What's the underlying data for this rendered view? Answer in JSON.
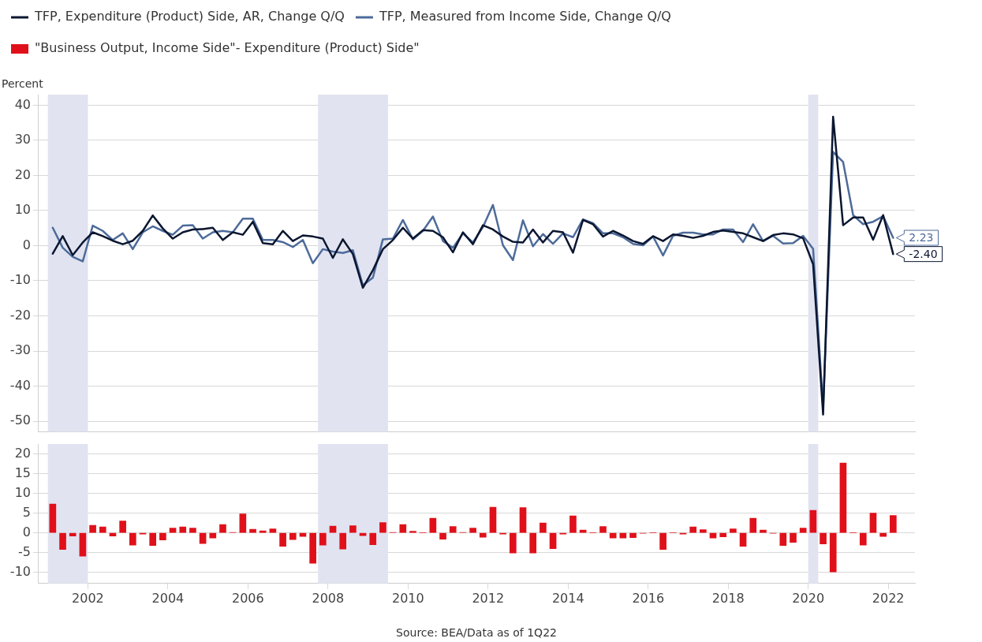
{
  "chart_data": [
    {
      "type": "line",
      "ylabel": "Percent",
      "legend": "top",
      "grid": "y",
      "marker": "none",
      "tick_labels": "y",
      "xlim": [
        "2000-10",
        "2022-09"
      ],
      "xticks": [
        "2002",
        "2004",
        "2006",
        "2008",
        "2010",
        "2012",
        "2014",
        "2016",
        "2018",
        "2020",
        "2022"
      ],
      "ylim": [
        -53,
        43
      ],
      "yticks": [
        40,
        30,
        20,
        10,
        0,
        -10,
        -20,
        -30,
        -40,
        -50
      ],
      "bands": [
        {
          "axis": "x",
          "from": "2001-01",
          "to": "2002-01",
          "color": "#e1e3f0"
        },
        {
          "axis": "x",
          "from": "2007-10",
          "to": "2009-07",
          "color": "#e1e3f0"
        },
        {
          "axis": "x",
          "from": "2020-01",
          "to": "2020-04",
          "color": "#e1e3f0"
        }
      ],
      "x": [
        "2001-02-15",
        "2001-05-15",
        "2001-08-15",
        "2001-11-15",
        "2002-02-15",
        "2002-05-15",
        "2002-08-15",
        "2002-11-15",
        "2003-02-15",
        "2003-05-15",
        "2003-08-15",
        "2003-11-15",
        "2004-02-15",
        "2004-05-15",
        "2004-08-15",
        "2004-11-15",
        "2005-02-15",
        "2005-05-15",
        "2005-08-15",
        "2005-11-15",
        "2006-02-15",
        "2006-05-15",
        "2006-08-15",
        "2006-11-15",
        "2007-02-15",
        "2007-05-15",
        "2007-08-15",
        "2007-11-15",
        "2008-02-15",
        "2008-05-15",
        "2008-08-15",
        "2008-11-15",
        "2009-02-15",
        "2009-05-15",
        "2009-08-15",
        "2009-11-15",
        "2010-02-15",
        "2010-05-15",
        "2010-08-15",
        "2010-11-15",
        "2011-02-15",
        "2011-05-15",
        "2011-08-15",
        "2011-11-15",
        "2012-02-15",
        "2012-05-15",
        "2012-08-15",
        "2012-11-15",
        "2013-02-15",
        "2013-05-15",
        "2013-08-15",
        "2013-11-15",
        "2014-02-15",
        "2014-05-15",
        "2014-08-15",
        "2014-11-15",
        "2015-02-15",
        "2015-05-15",
        "2015-08-15",
        "2015-11-15",
        "2016-02-15",
        "2016-05-15",
        "2016-08-15",
        "2016-11-15",
        "2017-02-15",
        "2017-05-15",
        "2017-08-15",
        "2017-11-15",
        "2018-02-15",
        "2018-05-15",
        "2018-08-15",
        "2018-11-15",
        "2019-02-15",
        "2019-05-15",
        "2019-08-15",
        "2019-11-15",
        "2020-02-15",
        "2020-05-15",
        "2020-08-15",
        "2020-11-15",
        "2021-02-15",
        "2021-05-15",
        "2021-08-15",
        "2021-11-15",
        "2022-02-15"
      ],
      "series": [
        {
          "name": "TFP, Expenditure (Product) Side, AR, Change Q/Q",
          "color": "#0b1630",
          "values": [
            -2.3,
            2.7,
            -2.7,
            0.9,
            3.8,
            2.7,
            1.4,
            0.4,
            1.4,
            4.2,
            8.6,
            4.9,
            2.0,
            3.8,
            4.6,
            4.7,
            5.1,
            1.6,
            3.8,
            3.1,
            6.8,
            0.7,
            0.4,
            4.2,
            1.3,
            2.9,
            2.6,
            2.0,
            -3.5,
            1.8,
            -2.4,
            -12.0,
            -7.0,
            -1.0,
            1.6,
            5.1,
            2.0,
            4.4,
            4.2,
            2.4,
            -1.9,
            3.8,
            0.4,
            5.8,
            4.6,
            2.6,
            1.1,
            0.9,
            4.6,
            0.9,
            4.2,
            3.8,
            -2.0,
            7.3,
            6.1,
            2.6,
            4.2,
            2.9,
            1.3,
            0.5,
            2.7,
            1.3,
            3.2,
            2.8,
            2.2,
            2.8,
            3.9,
            4.3,
            3.9,
            3.5,
            2.4,
            1.3,
            3.0,
            3.5,
            3.2,
            2.1,
            -5.3,
            -48.1,
            36.7,
            5.8,
            8.0,
            8.0,
            1.7,
            8.7,
            -2.4
          ],
          "value_labels": [
            null,
            null,
            null,
            null,
            null,
            null,
            null,
            null,
            null,
            null,
            null,
            null,
            null,
            null,
            null,
            null,
            null,
            null,
            null,
            null,
            null,
            null,
            null,
            null,
            null,
            null,
            null,
            null,
            null,
            null,
            null,
            null,
            null,
            null,
            null,
            null,
            null,
            null,
            null,
            null,
            null,
            null,
            null,
            null,
            null,
            null,
            null,
            null,
            null,
            null,
            null,
            null,
            null,
            null,
            null,
            null,
            null,
            null,
            null,
            null,
            null,
            null,
            null,
            null,
            null,
            null,
            null,
            null,
            null,
            null,
            null,
            null,
            null,
            null,
            null,
            null,
            null,
            null,
            null,
            null,
            null,
            null,
            null,
            null,
            "-2.40"
          ]
        },
        {
          "name": "TFP, Measured from Income Side, Change Q/Q",
          "color": "#4d6b9a",
          "values": [
            5.1,
            -0.6,
            -3.2,
            -4.5,
            5.7,
            4.2,
            1.6,
            3.5,
            -1.0,
            3.8,
            5.5,
            4.2,
            3.1,
            5.7,
            5.8,
            2.0,
            3.8,
            4.2,
            3.8,
            7.7,
            7.7,
            1.6,
            1.6,
            1.0,
            -0.4,
            1.6,
            -5.0,
            -1.0,
            -1.7,
            -2.1,
            -1.3,
            -11.3,
            -9.1,
            1.8,
            2.0,
            7.3,
            1.8,
            4.2,
            8.3,
            1.3,
            -0.6,
            3.5,
            0.9,
            5.3,
            11.6,
            0.1,
            -4.1,
            7.2,
            -0.2,
            3.3,
            0.5,
            3.5,
            2.4,
            7.5,
            6.4,
            3.5,
            3.5,
            2.4,
            0.5,
            0.1,
            2.6,
            -2.8,
            2.8,
            3.7,
            3.7,
            3.2,
            3.2,
            4.6,
            4.6,
            1.0,
            6.1,
            1.3,
            2.8,
            0.6,
            0.7,
            2.8,
            -0.9,
            -46.2,
            26.7,
            23.8,
            8.7,
            6.1,
            6.8,
            8.4,
            2.23
          ],
          "value_labels": [
            null,
            null,
            null,
            null,
            null,
            null,
            null,
            null,
            null,
            null,
            null,
            null,
            null,
            null,
            null,
            null,
            null,
            null,
            null,
            null,
            null,
            null,
            null,
            null,
            null,
            null,
            null,
            null,
            null,
            null,
            null,
            null,
            null,
            null,
            null,
            null,
            null,
            null,
            null,
            null,
            null,
            null,
            null,
            null,
            null,
            null,
            null,
            null,
            null,
            null,
            null,
            null,
            null,
            null,
            null,
            null,
            null,
            null,
            null,
            null,
            null,
            null,
            null,
            null,
            null,
            null,
            null,
            null,
            null,
            null,
            null,
            null,
            null,
            null,
            null,
            null,
            null,
            null,
            null,
            null,
            null,
            null,
            null,
            null,
            "2.23"
          ]
        }
      ]
    },
    {
      "type": "bar",
      "legend": "top",
      "grid": "y",
      "xlim": [
        "2000-10",
        "2022-09"
      ],
      "xticks": [
        "2002",
        "2004",
        "2006",
        "2008",
        "2010",
        "2012",
        "2014",
        "2016",
        "2018",
        "2020",
        "2022"
      ],
      "ylim": [
        -12.8,
        22.5
      ],
      "yticks": [
        20,
        15,
        10,
        5,
        0,
        -5,
        -10
      ],
      "bands": [
        {
          "axis": "x",
          "from": "2001-01",
          "to": "2002-01",
          "color": "#e1e3f0"
        },
        {
          "axis": "x",
          "from": "2007-10",
          "to": "2009-07",
          "color": "#e1e3f0"
        },
        {
          "axis": "x",
          "from": "2020-01",
          "to": "2020-04",
          "color": "#e1e3f0"
        }
      ],
      "annotations": [
        "Source: BEA/Data as of 1Q22"
      ],
      "x": [
        "2001-02-15",
        "2001-05-15",
        "2001-08-15",
        "2001-11-15",
        "2002-02-15",
        "2002-05-15",
        "2002-08-15",
        "2002-11-15",
        "2003-02-15",
        "2003-05-15",
        "2003-08-15",
        "2003-11-15",
        "2004-02-15",
        "2004-05-15",
        "2004-08-15",
        "2004-11-15",
        "2005-02-15",
        "2005-05-15",
        "2005-08-15",
        "2005-11-15",
        "2006-02-15",
        "2006-05-15",
        "2006-08-15",
        "2006-11-15",
        "2007-02-15",
        "2007-05-15",
        "2007-08-15",
        "2007-11-15",
        "2008-02-15",
        "2008-05-15",
        "2008-08-15",
        "2008-11-15",
        "2009-02-15",
        "2009-05-15",
        "2009-08-15",
        "2009-11-15",
        "2010-02-15",
        "2010-05-15",
        "2010-08-15",
        "2010-11-15",
        "2011-02-15",
        "2011-05-15",
        "2011-08-15",
        "2011-11-15",
        "2012-02-15",
        "2012-05-15",
        "2012-08-15",
        "2012-11-15",
        "2013-02-15",
        "2013-05-15",
        "2013-08-15",
        "2013-11-15",
        "2014-02-15",
        "2014-05-15",
        "2014-08-15",
        "2014-11-15",
        "2015-02-15",
        "2015-05-15",
        "2015-08-15",
        "2015-11-15",
        "2016-02-15",
        "2016-05-15",
        "2016-08-15",
        "2016-11-15",
        "2017-02-15",
        "2017-05-15",
        "2017-08-15",
        "2017-11-15",
        "2018-02-15",
        "2018-05-15",
        "2018-08-15",
        "2018-11-15",
        "2019-02-15",
        "2019-05-15",
        "2019-08-15",
        "2019-11-15",
        "2020-02-15",
        "2020-05-15",
        "2020-08-15",
        "2020-11-15",
        "2021-02-15",
        "2021-05-15",
        "2021-08-15",
        "2021-11-15",
        "2022-02-15"
      ],
      "series": [
        {
          "name": "\"Business Output, Income Side\"- Expenditure (Product) Side\"",
          "color": "#e0101a",
          "values": [
            7.3,
            -4.2,
            -0.8,
            -5.9,
            1.9,
            1.5,
            -0.8,
            3.0,
            -3.1,
            -0.3,
            -3.2,
            -1.8,
            1.2,
            1.5,
            1.2,
            -2.7,
            -1.3,
            2.1,
            0.1,
            4.8,
            0.9,
            0.5,
            1.0,
            -3.4,
            -1.7,
            -0.9,
            -7.7,
            -3.1,
            1.7,
            -4.1,
            1.8,
            -0.7,
            -3.0,
            2.6,
            0.1,
            2.1,
            0.4,
            0,
            3.7,
            -1.6,
            1.6,
            0.1,
            1.2,
            -1.1,
            6.5,
            -0.3,
            -5.1,
            6.4,
            -5.1,
            2.5,
            -4.0,
            -0.3,
            4.3,
            0.7,
            0,
            1.6,
            -1.3,
            -1.3,
            -1.2,
            -0.1,
            0,
            -4.2,
            0,
            -0.3,
            1.5,
            0.8,
            -1.3,
            -1.0,
            1.0,
            -3.4,
            3.7,
            0.7,
            -0.1,
            -3.2,
            -2.4,
            1.2,
            5.7,
            -2.8,
            -9.9,
            17.7,
            0,
            -3.1,
            5.0,
            -0.9,
            4.4
          ]
        }
      ]
    }
  ]
}
